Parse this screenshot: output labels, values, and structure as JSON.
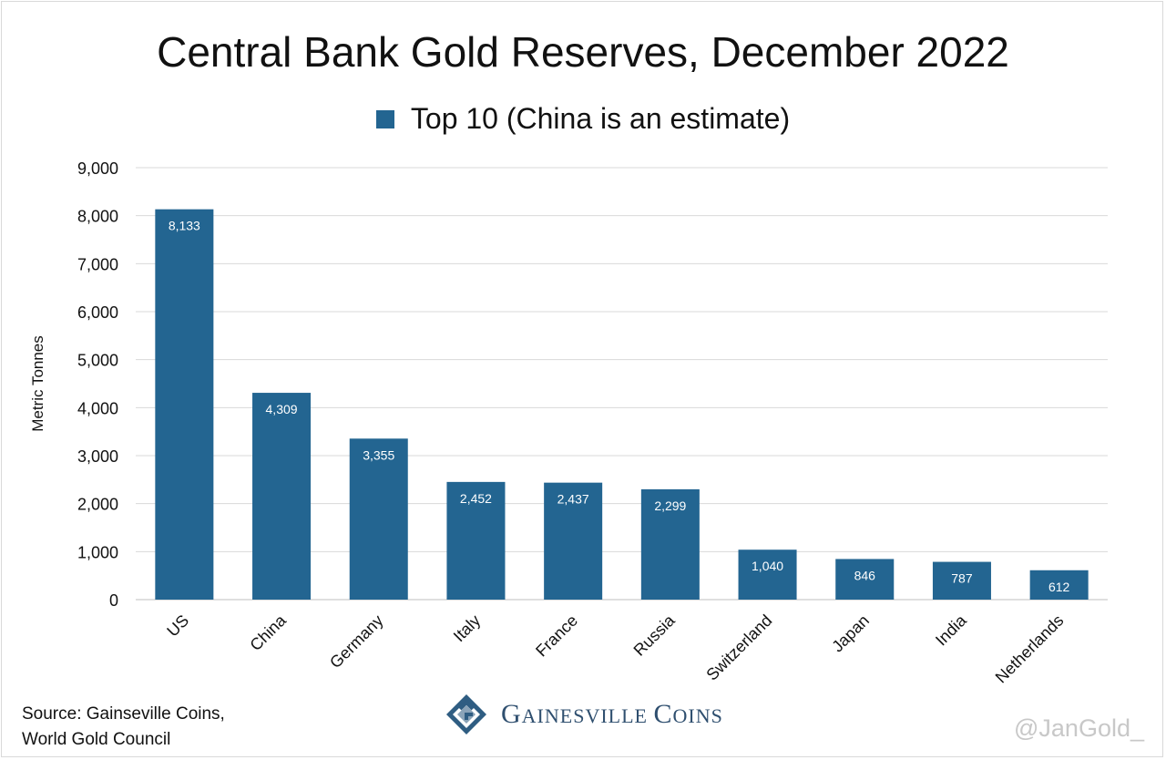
{
  "chart_data": {
    "type": "bar",
    "title": "Central Bank Gold Reserves, December 2022",
    "ylabel": "Metric Tonnes",
    "xlabel": "",
    "ylim": [
      0,
      9000
    ],
    "yticks": [
      "0",
      "1,000",
      "2,000",
      "3,000",
      "4,000",
      "5,000",
      "6,000",
      "7,000",
      "8,000",
      "9,000"
    ],
    "categories": [
      "US",
      "China",
      "Germany",
      "Italy",
      "France",
      "Russia",
      "Switzerland",
      "Japan",
      "India",
      "Netherlands"
    ],
    "series": [
      {
        "name": "Top 10 (China is an estimate)",
        "values": [
          8133,
          4309,
          3355,
          2452,
          2437,
          2299,
          1040,
          846,
          787,
          612
        ],
        "labels": [
          "8,133",
          "4,309",
          "3,355",
          "2,452",
          "2,437",
          "2,299",
          "1,040",
          "846",
          "787",
          "612"
        ],
        "color": "#236591"
      }
    ],
    "grid": true,
    "legend_position": "top-center"
  },
  "source": {
    "line1": "Source: Gainseville Coins,",
    "line2": "World Gold Council"
  },
  "logo": {
    "text_first": "G",
    "text_rest": "AINESVILLE ",
    "text_second": "C",
    "text_rest2": "OINS",
    "icon": "gainesville-coins-logo-icon"
  },
  "watermark": "@JanGold_"
}
